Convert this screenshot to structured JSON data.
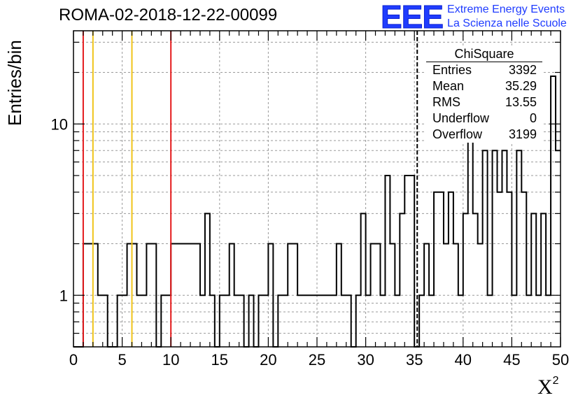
{
  "title": "ROMA-02-2018-12-22-00099",
  "logo": {
    "mark": "EEE",
    "line1": "Extreme Energy Events",
    "line2": "La Scienza nelle Scuole"
  },
  "stats_box": {
    "title": "ChiSquare",
    "rows": [
      {
        "label": "Entries",
        "value": "3392"
      },
      {
        "label": "Mean",
        "value": "35.29"
      },
      {
        "label": "RMS",
        "value": "13.55"
      },
      {
        "label": "Underflow",
        "value": "0"
      },
      {
        "label": "Overflow",
        "value": "3199"
      }
    ]
  },
  "chart_data": {
    "type": "histogram",
    "title": "ROMA-02-2018-12-22-00099",
    "xlabel": "X²",
    "ylabel": "Entries/bin",
    "xlim": [
      0,
      50
    ],
    "ylim": [
      0.5,
      35
    ],
    "y_scale": "log",
    "grid": true,
    "bin_width": 0.5,
    "x_ticks": [
      "0",
      "5",
      "10",
      "15",
      "20",
      "25",
      "30",
      "35",
      "40",
      "45",
      "50"
    ],
    "y_ticks": [
      "1",
      "10"
    ],
    "bins": [
      [
        1.0,
        2
      ],
      [
        2.5,
        1
      ],
      [
        3.5,
        0
      ],
      [
        4.5,
        1
      ],
      [
        5.5,
        2
      ],
      [
        6.5,
        1
      ],
      [
        7.5,
        2
      ],
      [
        8.5,
        0
      ],
      [
        9.0,
        1
      ],
      [
        10.0,
        2
      ],
      [
        12.5,
        2
      ],
      [
        13.0,
        1
      ],
      [
        13.5,
        3
      ],
      [
        14.0,
        1
      ],
      [
        14.5,
        0
      ],
      [
        15.0,
        1
      ],
      [
        16.0,
        2
      ],
      [
        16.5,
        1
      ],
      [
        17.5,
        0
      ],
      [
        18.0,
        1
      ],
      [
        18.5,
        0
      ],
      [
        19.0,
        1
      ],
      [
        20.0,
        2
      ],
      [
        20.5,
        0
      ],
      [
        21.0,
        1
      ],
      [
        22.0,
        2
      ],
      [
        23.0,
        1
      ],
      [
        27.0,
        2
      ],
      [
        27.5,
        1
      ],
      [
        28.5,
        0
      ],
      [
        29.0,
        1
      ],
      [
        29.5,
        3
      ],
      [
        30.0,
        1
      ],
      [
        30.5,
        2
      ],
      [
        31.5,
        1
      ],
      [
        32.0,
        5
      ],
      [
        32.5,
        2
      ],
      [
        33.0,
        1
      ],
      [
        33.5,
        3
      ],
      [
        34.0,
        5
      ],
      [
        35.0,
        0
      ],
      [
        35.5,
        1
      ],
      [
        36.0,
        2
      ],
      [
        36.5,
        1
      ],
      [
        37.0,
        4
      ],
      [
        38.0,
        2
      ],
      [
        38.5,
        4
      ],
      [
        39.0,
        2
      ],
      [
        39.5,
        1
      ],
      [
        40.0,
        3
      ],
      [
        40.5,
        8
      ],
      [
        41.0,
        3
      ],
      [
        41.5,
        2
      ],
      [
        42.0,
        7
      ],
      [
        42.5,
        1
      ],
      [
        43.0,
        7
      ],
      [
        43.5,
        4
      ],
      [
        44.0,
        7
      ],
      [
        44.5,
        4
      ],
      [
        45.0,
        1
      ],
      [
        45.5,
        7
      ],
      [
        46.0,
        4
      ],
      [
        46.5,
        1
      ],
      [
        47.0,
        3
      ],
      [
        47.5,
        1
      ],
      [
        48.0,
        3
      ],
      [
        48.5,
        1
      ],
      [
        49.0,
        19
      ],
      [
        49.5,
        7
      ],
      [
        50.0,
        7
      ]
    ],
    "vertical_lines": [
      {
        "x": 1,
        "color": "#e41a1c",
        "style": "solid"
      },
      {
        "x": 2,
        "color": "#f0c419",
        "style": "solid"
      },
      {
        "x": 6,
        "color": "#f0c419",
        "style": "solid"
      },
      {
        "x": 10,
        "color": "#e41a1c",
        "style": "solid"
      },
      {
        "x": 35.29,
        "color": "#000000",
        "style": "dashed"
      }
    ]
  }
}
